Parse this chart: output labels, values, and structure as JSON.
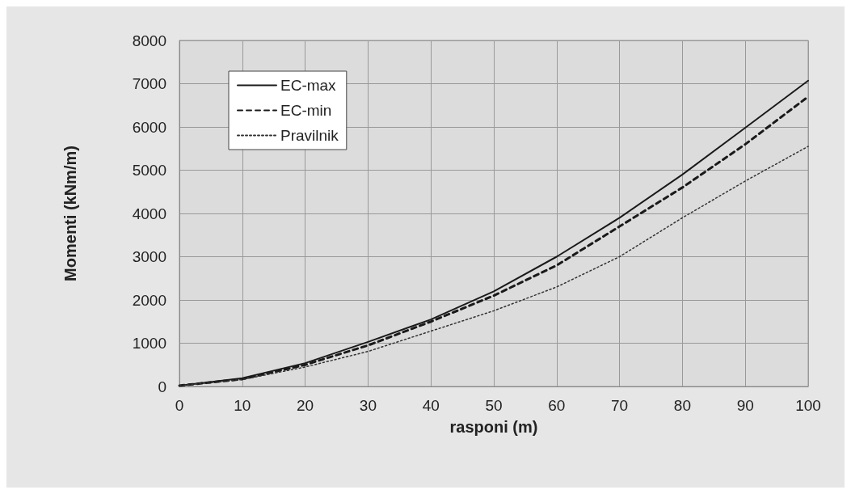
{
  "chart_data": {
    "type": "line",
    "xlabel": "rasponi (m)",
    "ylabel": "Momenti (kNm/m)",
    "x": [
      0,
      10,
      20,
      30,
      40,
      50,
      60,
      70,
      80,
      90,
      100
    ],
    "series": [
      {
        "name": "EC-max",
        "color": "#1a1a1a",
        "line_style": "solid",
        "values": [
          20,
          190,
          540,
          1030,
          1550,
          2200,
          3000,
          3900,
          4900,
          5980,
          7070
        ]
      },
      {
        "name": "EC-min",
        "color": "#1a1a1a",
        "line_style": "dashed",
        "values": [
          20,
          170,
          500,
          950,
          1500,
          2100,
          2800,
          3700,
          4600,
          5600,
          6700
        ]
      },
      {
        "name": "Pravilnik",
        "color": "#333333",
        "line_style": "dotted",
        "values": [
          20,
          160,
          450,
          810,
          1280,
          1750,
          2300,
          3000,
          3900,
          4750,
          5550
        ]
      }
    ],
    "xlim": [
      0,
      100
    ],
    "xticks": [
      0,
      10,
      20,
      30,
      40,
      50,
      60,
      70,
      80,
      90,
      100
    ],
    "ylim": [
      0,
      8000
    ],
    "yticks": [
      0,
      1000,
      2000,
      3000,
      4000,
      5000,
      6000,
      7000,
      8000
    ],
    "grid": true,
    "legend": "top left",
    "marker": "none"
  }
}
